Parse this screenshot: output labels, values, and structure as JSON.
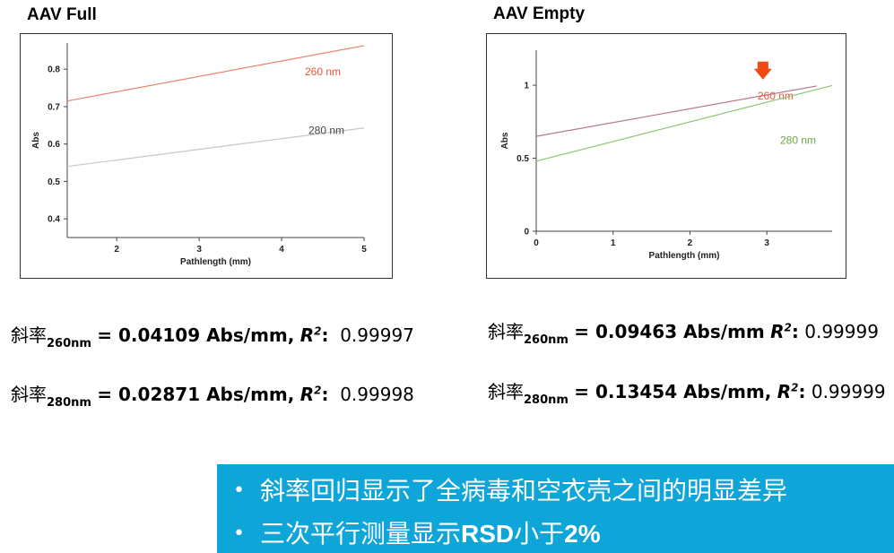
{
  "panels": [
    {
      "title": "AAV Full",
      "equations": [
        {
          "label": "斜率",
          "sub": "260nm",
          "value": "= 0.04109 Abs/mm,",
          "r2_label": "R",
          "r2_sup": "2",
          "r2_colon": ":",
          "r2_value": "0.99997"
        },
        {
          "label": "斜率",
          "sub": "280nm",
          "value": "= 0.02871 Abs/mm,",
          "r2_label": "R",
          "r2_sup": "2",
          "r2_colon": ":",
          "r2_value": "0.99998"
        }
      ]
    },
    {
      "title": "AAV Empty",
      "equations": [
        {
          "label": "斜率",
          "sub": "260nm",
          "value": "= 0.09463 Abs/mm",
          "r2_label": "R",
          "r2_sup": "2",
          "r2_colon": ":",
          "r2_value": "0.99999"
        },
        {
          "label": "斜率",
          "sub": "280nm",
          "value": "= 0.13454 Abs/mm,",
          "r2_label": "R",
          "r2_sup": "2",
          "r2_colon": ":",
          "r2_value": "0.99999"
        }
      ]
    }
  ],
  "chart_data": [
    {
      "type": "line",
      "xlabel": "Pathlength (mm)",
      "ylabel": "Abs",
      "xlim": [
        1.4,
        5.0
      ],
      "ylim": [
        0.35,
        0.87
      ],
      "xticks": [
        2,
        3,
        4,
        5
      ],
      "yticks": [
        0.4,
        0.5,
        0.6,
        0.7,
        0.8
      ],
      "ytick_labels": [
        "0.4",
        "0.5",
        "0.6",
        "0.7",
        "0.8"
      ],
      "grid": false,
      "series": [
        {
          "name": "260 nm",
          "color": "#e8573a",
          "line_color": "#f08070",
          "x": [
            1.4,
            5.0
          ],
          "y": [
            0.715,
            0.863
          ]
        },
        {
          "name": "280 nm",
          "color": "#444444",
          "line_color": "#c8c8c8",
          "x": [
            1.4,
            5.0
          ],
          "y": [
            0.54,
            0.643
          ]
        }
      ]
    },
    {
      "type": "line",
      "xlabel": "Pathlength (mm)",
      "ylabel": "Abs",
      "xlim": [
        0,
        3.85
      ],
      "ylim": [
        0,
        1.24
      ],
      "xticks": [
        0,
        1,
        2,
        3
      ],
      "yticks": [
        0,
        0.5,
        1
      ],
      "ytick_labels": [
        "0",
        "0.5",
        "1"
      ],
      "grid": false,
      "series": [
        {
          "name": "260 nm",
          "color": "#e8573a",
          "line_color": "#b87a8a",
          "x": [
            0,
            3.65
          ],
          "y": [
            0.65,
            0.995
          ]
        },
        {
          "name": "280 nm",
          "color": "#6aaa3a",
          "line_color": "#8cc870",
          "x": [
            0,
            3.85
          ],
          "y": [
            0.48,
            0.998
          ]
        }
      ],
      "annotation": {
        "type": "down-arrow",
        "color": "#f04a12",
        "x": 2.95,
        "y": 1.1
      }
    }
  ],
  "callout": {
    "bullets": [
      {
        "text": "斜率回归显示了全病毒和空衣壳之间的明显差异",
        "bold_part": "",
        "tail": ""
      },
      {
        "text": "三次平行测量显示",
        "bold_part": "RSD",
        "tail": "小于",
        "bold_tail": "2%"
      }
    ],
    "background": "#0ea5d8"
  }
}
